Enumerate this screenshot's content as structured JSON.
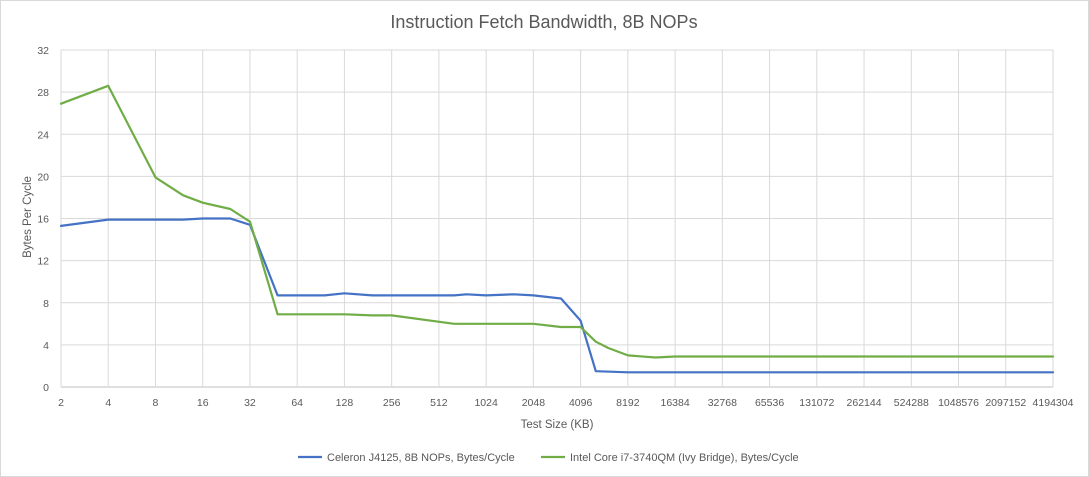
{
  "chart_data": {
    "type": "line",
    "title": "Instruction Fetch Bandwidth, 8B NOPs",
    "xlabel": "Test Size (KB)",
    "ylabel": "Bytes Per Cycle",
    "x_scale": "log2",
    "xlim": [
      2,
      4194304
    ],
    "ylim": [
      0,
      32
    ],
    "y_ticks": [
      0,
      4,
      8,
      12,
      16,
      20,
      24,
      28,
      32
    ],
    "x_ticks": [
      2,
      4,
      8,
      16,
      32,
      64,
      128,
      256,
      512,
      1024,
      2048,
      4096,
      8192,
      16384,
      32768,
      65536,
      131072,
      262144,
      524288,
      1048576,
      2097152,
      4194304
    ],
    "grid": true,
    "legend_position": "bottom",
    "series": [
      {
        "name": "Celeron J4125, 8B NOPs, Bytes/Cycle",
        "color": "#4472C4",
        "x": [
          2,
          4,
          8,
          12,
          16,
          24,
          32,
          48,
          96,
          128,
          192,
          256,
          512,
          640,
          768,
          1024,
          1536,
          2048,
          3072,
          4096,
          5120,
          8192,
          12288,
          16384,
          4194304
        ],
        "y": [
          15.3,
          15.9,
          15.9,
          15.9,
          16.0,
          16.0,
          15.4,
          8.7,
          8.7,
          8.9,
          8.7,
          8.7,
          8.7,
          8.7,
          8.8,
          8.7,
          8.8,
          8.7,
          8.4,
          6.3,
          1.5,
          1.4,
          1.4,
          1.4,
          1.4
        ]
      },
      {
        "name": "Intel Core i7-3740QM (Ivy Bridge), Bytes/Cycle",
        "color": "#70AD47",
        "x": [
          2,
          4,
          8,
          12,
          16,
          24,
          32,
          48,
          96,
          128,
          192,
          256,
          640,
          768,
          1024,
          1536,
          2048,
          3072,
          4096,
          5120,
          6144,
          8192,
          12288,
          16384,
          4194304
        ],
        "y": [
          26.9,
          28.6,
          19.9,
          18.2,
          17.5,
          16.9,
          15.7,
          6.9,
          6.9,
          6.9,
          6.8,
          6.8,
          6.0,
          6.0,
          6.0,
          6.0,
          6.0,
          5.7,
          5.7,
          4.3,
          3.7,
          3.0,
          2.8,
          2.9,
          2.9
        ]
      }
    ]
  }
}
